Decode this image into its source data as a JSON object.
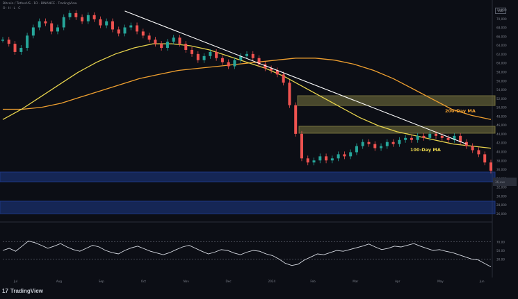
{
  "header": {
    "title": "Bitcoin / TetherUS · 1D · BINANCE · TradingView",
    "subline": "O · H · L · C"
  },
  "brand": {
    "name": "TradingView",
    "icon": "tradingview-logo-icon"
  },
  "corner_label": "USD",
  "labels": {
    "ma200": "200-Day MA",
    "ma100": "100-Day MA"
  },
  "colors": {
    "background": "#0c0e15",
    "bull": "#26a69a",
    "bear": "#ef5350",
    "ma100": "#e8d44d",
    "ma200": "#f0a030",
    "trendline": "#ffffff",
    "supply_zone": "#7a7740",
    "demand_zone": "#1e3a8a",
    "rsi": "#d8dce4"
  },
  "chart_data": {
    "type": "line",
    "price_axis_labels": [
      "72,000",
      "70,000",
      "68,000",
      "66,000",
      "64,000",
      "62,000",
      "60,000",
      "58,000",
      "56,000",
      "54,000",
      "52,000",
      "50,000",
      "48,000",
      "46,000",
      "44,000",
      "42,000",
      "40,000",
      "38,000",
      "36,000",
      "34,000",
      "32,000",
      "30,000",
      "28,000",
      "26,000"
    ],
    "current_price_tag": "36,xxx",
    "x_tick_labels": [
      "Jul",
      "Aug",
      "Sep",
      "Oct",
      "Nov",
      "Dec",
      "2024",
      "Feb",
      "Mar",
      "Apr",
      "May",
      "Jun"
    ],
    "price_series_points": [
      0.84,
      0.82,
      0.78,
      0.8,
      0.86,
      0.9,
      0.93,
      0.92,
      0.88,
      0.9,
      0.95,
      0.97,
      0.95,
      0.93,
      0.96,
      0.94,
      0.91,
      0.93,
      0.89,
      0.87,
      0.9,
      0.91,
      0.88,
      0.86,
      0.84,
      0.82,
      0.8,
      0.83,
      0.85,
      0.82,
      0.79,
      0.77,
      0.74,
      0.76,
      0.78,
      0.75,
      0.73,
      0.71,
      0.74,
      0.76,
      0.77,
      0.75,
      0.72,
      0.7,
      0.69,
      0.67,
      0.63,
      0.52,
      0.38,
      0.26,
      0.24,
      0.25,
      0.27,
      0.25,
      0.26,
      0.28,
      0.27,
      0.29,
      0.32,
      0.34,
      0.33,
      0.31,
      0.32,
      0.34,
      0.33,
      0.35,
      0.36,
      0.35,
      0.37,
      0.36,
      0.38,
      0.37,
      0.36,
      0.35,
      0.37,
      0.34,
      0.32,
      0.3,
      0.28,
      0.24,
      0.2
    ],
    "ma100": [
      0.45,
      0.5,
      0.56,
      0.62,
      0.68,
      0.73,
      0.77,
      0.8,
      0.82,
      0.82,
      0.81,
      0.79,
      0.76,
      0.73,
      0.7,
      0.66,
      0.61,
      0.56,
      0.51,
      0.46,
      0.42,
      0.39,
      0.37,
      0.35,
      0.33,
      0.32,
      0.31
    ],
    "ma200": [
      0.5,
      0.5,
      0.51,
      0.53,
      0.56,
      0.59,
      0.62,
      0.65,
      0.67,
      0.69,
      0.7,
      0.71,
      0.72,
      0.73,
      0.74,
      0.75,
      0.75,
      0.74,
      0.72,
      0.69,
      0.65,
      0.6,
      0.55,
      0.5,
      0.47,
      0.45
    ],
    "trendline": {
      "from": [
        0.25,
        0.98
      ],
      "to": [
        0.95,
        0.33
      ]
    },
    "zones": [
      {
        "name": "upper-supply-zone",
        "level": "high",
        "color": "#7a7740"
      },
      {
        "name": "middle-supply-zone",
        "level": "mid",
        "color": "#7a7740"
      },
      {
        "name": "lower-demand-zone",
        "level": "low",
        "color": "#1e3a8a"
      },
      {
        "name": "bottom-demand-zone",
        "level": "lowest",
        "color": "#1e3a8a"
      }
    ],
    "rsi": [
      0.5,
      0.55,
      0.48,
      0.6,
      0.72,
      0.68,
      0.62,
      0.55,
      0.6,
      0.66,
      0.58,
      0.52,
      0.48,
      0.55,
      0.62,
      0.58,
      0.5,
      0.45,
      0.42,
      0.5,
      0.56,
      0.6,
      0.54,
      0.48,
      0.44,
      0.4,
      0.45,
      0.52,
      0.58,
      0.62,
      0.55,
      0.48,
      0.42,
      0.46,
      0.52,
      0.5,
      0.44,
      0.4,
      0.46,
      0.5,
      0.48,
      0.42,
      0.38,
      0.3,
      0.2,
      0.15,
      0.18,
      0.28,
      0.35,
      0.42,
      0.4,
      0.45,
      0.5,
      0.48,
      0.52,
      0.56,
      0.6,
      0.65,
      0.58,
      0.52,
      0.55,
      0.6,
      0.58,
      0.62,
      0.66,
      0.6,
      0.55,
      0.5,
      0.52,
      0.48,
      0.45,
      0.4,
      0.35,
      0.3,
      0.28,
      0.2,
      0.12
    ],
    "rsi_axis_labels": [
      "70.00",
      "50.00",
      "30.00"
    ]
  }
}
